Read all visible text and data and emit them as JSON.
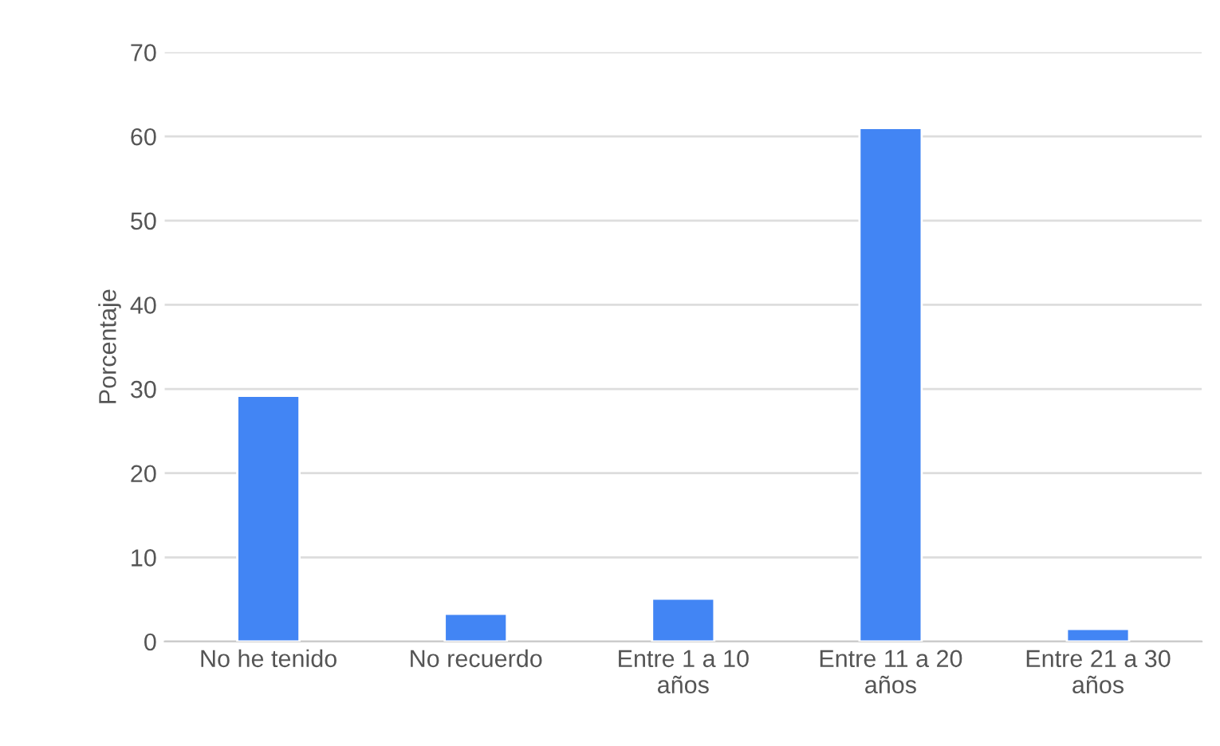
{
  "chart_data": {
    "type": "bar",
    "ylabel": "Porcentaje",
    "categories": [
      "No he tenido",
      "No recuerdo",
      "Entre 1 a 10\naños",
      "Entre 11 a 20\naños",
      "Entre 21 a 30\naños"
    ],
    "values": [
      29.2,
      3.3,
      5.1,
      61,
      1.5
    ],
    "color": "#4285f4",
    "ylim": [
      0,
      70
    ],
    "yticks": [
      0,
      10,
      20,
      30,
      40,
      50,
      60,
      70
    ],
    "grid": "y"
  }
}
